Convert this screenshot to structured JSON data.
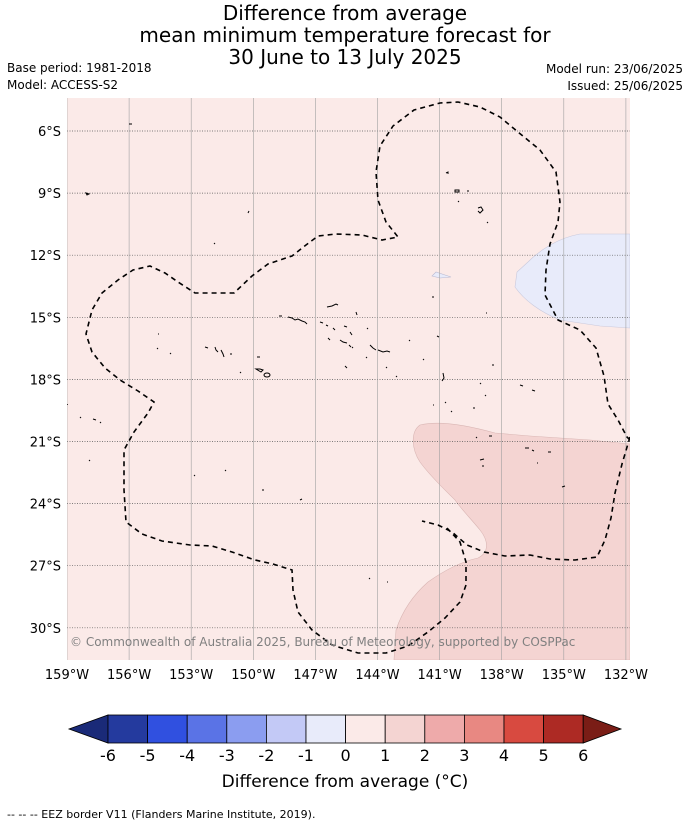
{
  "title": {
    "line1": "Difference from average",
    "line2": "mean minimum temperature forecast for",
    "line3": "30 June to 13 July 2025"
  },
  "meta": {
    "base_period": "Base period: 1981-2018",
    "model": "Model: ACCESS-S2",
    "model_run": "Model run: 23/06/2025",
    "issued": "Issued: 25/06/2025"
  },
  "map": {
    "lat_labels": [
      "6°S",
      "9°S",
      "12°S",
      "15°S",
      "18°S",
      "21°S",
      "24°S",
      "27°S",
      "30°S"
    ],
    "lon_labels": [
      "159°W",
      "156°W",
      "153°W",
      "150°W",
      "147°W",
      "144°W",
      "141°W",
      "138°W",
      "135°W",
      "132°W"
    ],
    "copyright": "© Commonwealth of Australia 2025, Bureau of Meteorology, supported by COSPPac",
    "colors": {
      "background_0_to_1": "#fbeae8",
      "anomaly_1_to_2": "#f4d4d2",
      "anomaly_neg1_to_0": "#e8ebfa"
    }
  },
  "colorbar": {
    "ticks": [
      "-6",
      "-5",
      "-4",
      "-3",
      "-2",
      "-1",
      "0",
      "1",
      "2",
      "3",
      "4",
      "5",
      "6"
    ],
    "colors": [
      "#243a9e",
      "#3050e0",
      "#5a73e6",
      "#8b9df0",
      "#c3c9f6",
      "#e8ebfa",
      "#fbeae8",
      "#f4d4d2",
      "#eeaaaa",
      "#e88882",
      "#d84a40",
      "#ad2a24"
    ],
    "extend_low": "#1a2a78",
    "extend_high": "#7a1d16",
    "label": "Difference from average (°C)"
  },
  "footer": "--  --  -- EEZ border V11 (Flanders Marine Institute, 2019)."
}
